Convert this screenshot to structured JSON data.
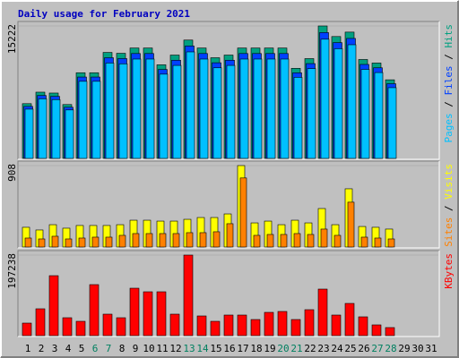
{
  "title": "Daily usage for February 2021",
  "legend_separator": " / ",
  "chart_data": [
    {
      "type": "bar",
      "ylim": [
        0,
        15222
      ],
      "yticks": [
        15222
      ],
      "series": [
        {
          "name": "Hits",
          "color": "#00a080",
          "values": [
            6293,
            7613,
            7511,
            6192,
            9846,
            9846,
            12180,
            12079,
            12688,
            12688,
            10759,
            11876,
            13601,
            12688,
            11571,
            11876,
            12688,
            12688,
            12688,
            12688,
            10353,
            11470,
            15222,
            14007,
            14515,
            11368,
            10962,
            9034,
            null,
            null,
            null
          ]
        },
        {
          "name": "Files",
          "color": "#0040ff",
          "values": [
            5978,
            7232,
            7135,
            5882,
            9354,
            9354,
            11571,
            11475,
            12054,
            12054,
            10221,
            11282,
            12921,
            12054,
            10992,
            11282,
            12054,
            12054,
            12054,
            12054,
            9835,
            10897,
            14461,
            13307,
            13789,
            10800,
            10414,
            8582,
            null,
            null,
            null
          ]
        },
        {
          "name": "Pages",
          "color": "#00c0ff",
          "values": [
            5664,
            6852,
            6760,
            5573,
            8861,
            8861,
            10962,
            10871,
            11419,
            11419,
            9683,
            10688,
            12241,
            11419,
            10414,
            10688,
            11419,
            11419,
            11419,
            11419,
            9318,
            10323,
            13700,
            12606,
            13064,
            10231,
            9866,
            8131,
            null,
            null,
            null
          ]
        }
      ]
    },
    {
      "type": "bar",
      "ylim": [
        0,
        908
      ],
      "yticks": [
        908
      ],
      "series": [
        {
          "name": "Visits",
          "color": "#ffff00",
          "values": [
            220,
            190,
            249,
            210,
            240,
            240,
            240,
            249,
            299,
            299,
            289,
            289,
            309,
            329,
            329,
            369,
            908,
            269,
            289,
            249,
            299,
            269,
            429,
            249,
            649,
            229,
            220,
            200,
            null,
            null,
            null
          ]
        },
        {
          "name": "Sites",
          "color": "#ff8000",
          "values": [
            100,
            90,
            120,
            90,
            100,
            110,
            110,
            130,
            150,
            150,
            150,
            150,
            160,
            160,
            170,
            260,
            770,
            130,
            140,
            140,
            150,
            140,
            200,
            130,
            500,
            110,
            100,
            90,
            null,
            null,
            null
          ]
        }
      ]
    },
    {
      "type": "bar",
      "ylim": [
        0,
        197238
      ],
      "yticks": [
        197238
      ],
      "categories": [
        "1",
        "2",
        "3",
        "4",
        "5",
        "6",
        "7",
        "8",
        "9",
        "10",
        "11",
        "12",
        "13",
        "14",
        "15",
        "16",
        "17",
        "18",
        "19",
        "20",
        "21",
        "22",
        "23",
        "24",
        "25",
        "26",
        "27",
        "28",
        "29",
        "30",
        "31"
      ],
      "category_colors": [
        "#000000",
        "#000000",
        "#000000",
        "#000000",
        "#000000",
        "#008060",
        "#008060",
        "#000000",
        "#000000",
        "#000000",
        "#000000",
        "#000000",
        "#008060",
        "#008060",
        "#000000",
        "#000000",
        "#000000",
        "#000000",
        "#000000",
        "#008060",
        "#008060",
        "#000000",
        "#000000",
        "#000000",
        "#000000",
        "#000000",
        "#008060",
        "#008060",
        "#000000",
        "#000000",
        "#000000"
      ],
      "series": [
        {
          "name": "KBytes",
          "color": "#ff0000",
          "values": [
            30674,
            65730,
            146797,
            43820,
            35056,
            124887,
            52584,
            43820,
            116123,
            107359,
            107359,
            52584,
            197238,
            48202,
            35056,
            50393,
            50393,
            39438,
            56966,
            59157,
            39438,
            63539,
            113932,
            50393,
            78876,
            46011,
            26292,
            19719,
            null,
            null,
            null
          ]
        }
      ]
    }
  ]
}
